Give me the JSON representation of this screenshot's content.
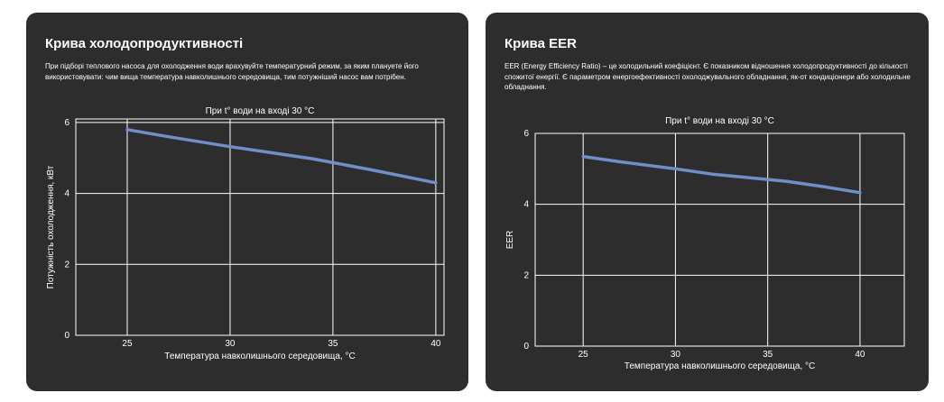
{
  "cards": [
    {
      "title": "Крива холодопродуктивності",
      "description": "При підборі теплового насоса для охолодження води врахувуйте температурний режим, за яким плануете його використовувати: чим вища температура навколишнього середовища, тим потужніший насос вам потрібен."
    },
    {
      "title": "Крива EER",
      "description": "EER (Energy Efficiency Ratio) – це холодильний коефіцієнт. Є показником відношення холодопродуктивності до кількості спожитої енергії. Є параметром енергоефективності охолоджувального обладнання, як-от кондиціонери або холодильне обладнання."
    }
  ],
  "colors": {
    "card_background": "#2e2d2d",
    "plot_background": "#2e2d2d",
    "grid": "#ffffff",
    "series_line": "#6f8fc8"
  },
  "chart_data": [
    {
      "type": "line",
      "title": "При t° води на вході 30 °C",
      "xlabel": "Температура навколишнього середовища, °C",
      "ylabel": "Потужність охолодження, кВт",
      "xlim": [
        22.5,
        40.4
      ],
      "ylim": [
        0,
        6.1
      ],
      "xticks": [
        25,
        30,
        35,
        40
      ],
      "yticks": [
        0,
        2,
        4,
        6
      ],
      "grid": true,
      "x": [
        25,
        27,
        30,
        32,
        34,
        35,
        37,
        40
      ],
      "y": [
        5.8,
        5.6,
        5.32,
        5.15,
        4.98,
        4.87,
        4.65,
        4.3
      ]
    },
    {
      "type": "line",
      "title": "При t° води на вході 30 °C",
      "xlabel": "Температура навколишнього середовища, °C",
      "ylabel": "EER",
      "xlim": [
        22.4,
        42.4
      ],
      "ylim": [
        0,
        6
      ],
      "xticks": [
        25,
        30,
        35,
        40
      ],
      "yticks": [
        0,
        2,
        4,
        6
      ],
      "grid": true,
      "x": [
        25,
        27,
        30,
        32,
        35,
        36,
        38,
        40
      ],
      "y": [
        5.35,
        5.2,
        5.0,
        4.85,
        4.7,
        4.65,
        4.5,
        4.33
      ]
    }
  ]
}
